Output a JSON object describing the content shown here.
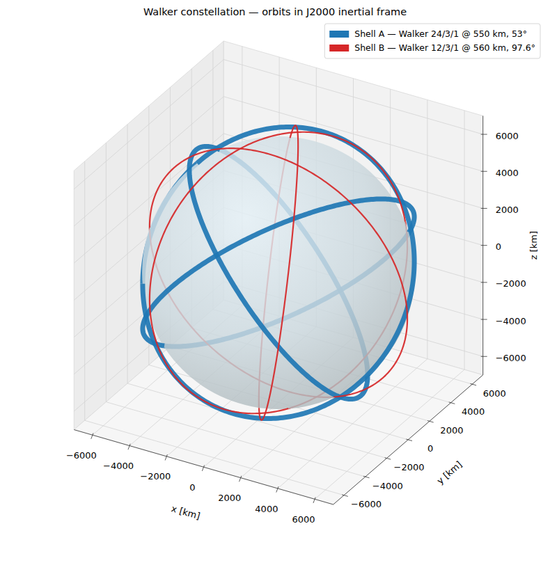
{
  "chart_data": {
    "type": "orbit_3d",
    "title": "Walker constellation — orbits in J2000 inertial frame",
    "xlabel": "x [km]",
    "ylabel": "y [km]",
    "zlabel": "z [km]",
    "xlim": [
      -7000,
      7000
    ],
    "ylim": [
      -7000,
      7000
    ],
    "zlim": [
      -7000,
      7000
    ],
    "xticks": [
      {
        "value": -6000,
        "label": "−6000"
      },
      {
        "value": -4000,
        "label": "−4000"
      },
      {
        "value": -2000,
        "label": "−2000"
      },
      0,
      2000,
      4000,
      6000
    ],
    "yticks": [
      {
        "value": -6000,
        "label": "−6000"
      },
      {
        "value": -4000,
        "label": "−4000"
      },
      {
        "value": -2000,
        "label": "−2000"
      },
      0,
      2000,
      4000,
      6000
    ],
    "zticks": [
      {
        "value": -6000,
        "label": "−6000"
      },
      {
        "value": -4000,
        "label": "−4000"
      },
      {
        "value": -2000,
        "label": "−2000"
      },
      0,
      2000,
      4000,
      6000
    ],
    "earth_radius": 6378,
    "grid": true,
    "legend": "upper right",
    "series": [
      {
        "name": "Shell A — Walker 24/3/1 @ 550 km, 53°",
        "color": "#1f77b4",
        "altitude": 550,
        "inclination": 53,
        "raan": [
          0,
          120,
          240
        ]
      },
      {
        "name": "Shell B — Walker 12/3/1 @ 560 km, 97.6°",
        "color": "#d62728",
        "altitude": 560,
        "inclination": 97.6,
        "raan": [
          0,
          120,
          240
        ]
      }
    ]
  }
}
